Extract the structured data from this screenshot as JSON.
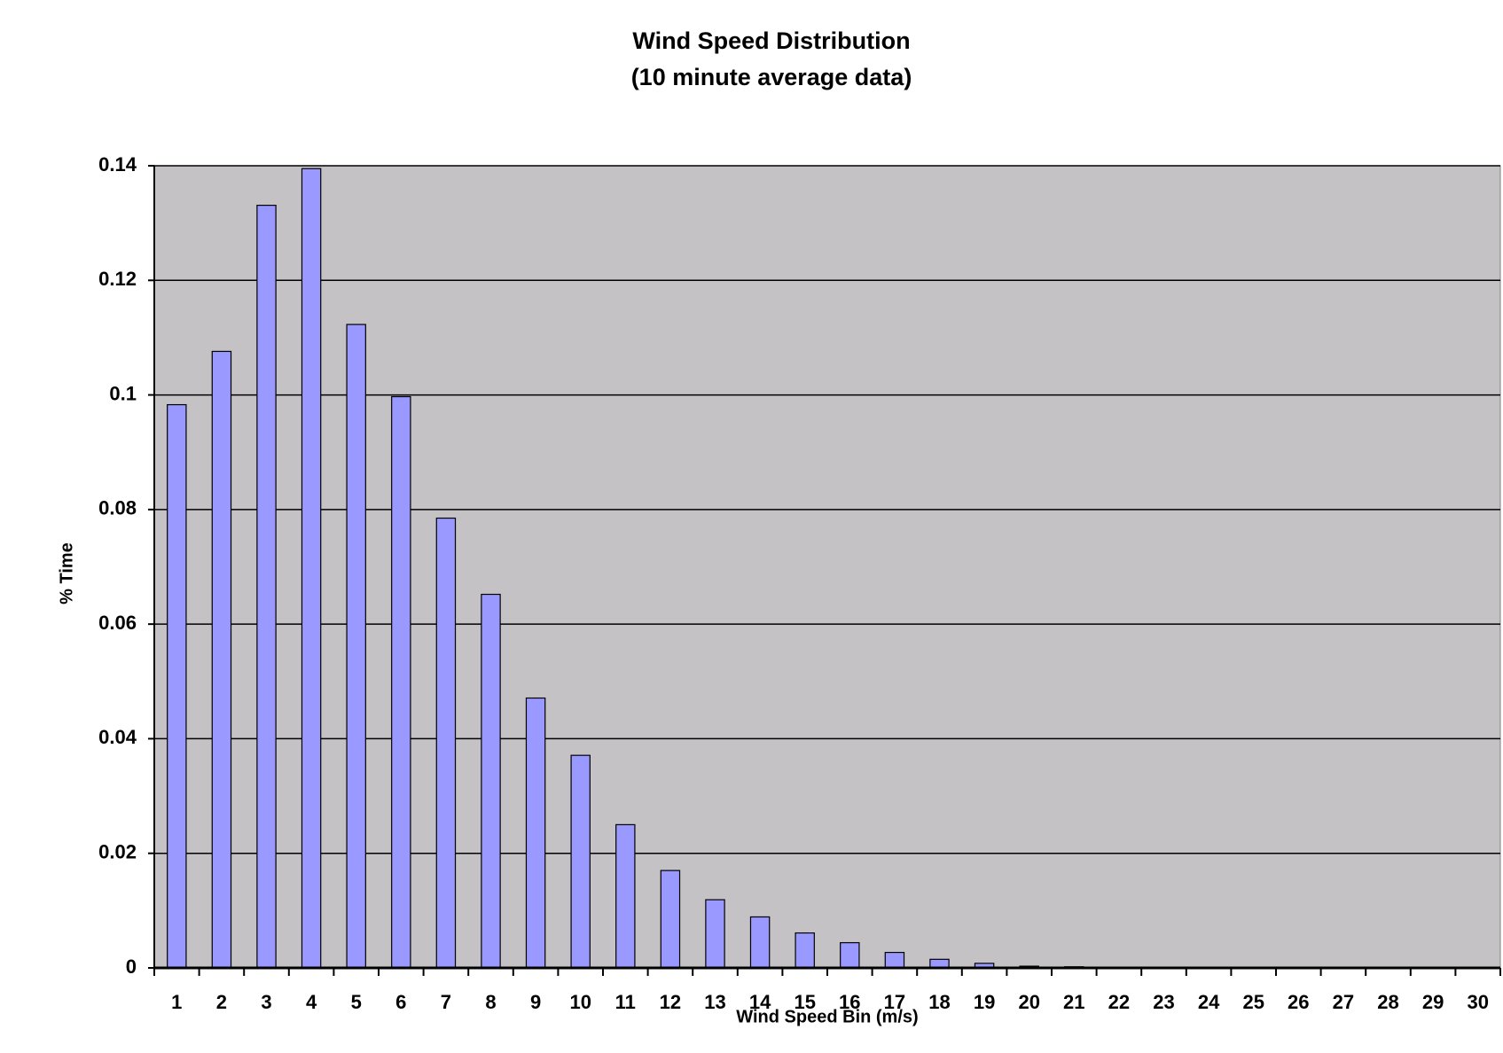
{
  "chart_data": {
    "type": "bar",
    "title": "Wind Speed Distribution",
    "subtitle": "(10 minute average data)",
    "x_label": "Wind Speed Bin (m/s)",
    "y_label": "% Time",
    "categories": [
      "1",
      "2",
      "3",
      "4",
      "5",
      "6",
      "7",
      "8",
      "9",
      "10",
      "11",
      "12",
      "13",
      "14",
      "15",
      "16",
      "17",
      "18",
      "19",
      "20",
      "21",
      "22",
      "23",
      "24",
      "25",
      "26",
      "27",
      "28",
      "29",
      "30"
    ],
    "values": [
      0.0983,
      0.1076,
      0.1331,
      0.1395,
      0.1123,
      0.0997,
      0.0785,
      0.0652,
      0.0471,
      0.0371,
      0.025,
      0.017,
      0.0119,
      0.0089,
      0.0061,
      0.0044,
      0.0027,
      0.0015,
      0.0008,
      0.0003,
      0.0002,
      0,
      0,
      0,
      0,
      0,
      0,
      0,
      0,
      0
    ],
    "color": "#9999ff",
    "ylim": [
      0,
      0.14
    ],
    "yticks": [
      0,
      0.02,
      0.04,
      0.06,
      0.08,
      0.1,
      0.12,
      0.14
    ],
    "grid": true
  }
}
